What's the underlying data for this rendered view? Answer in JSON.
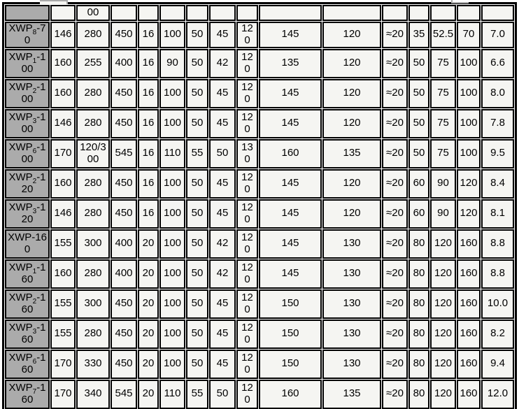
{
  "table": {
    "description": "XWP series reducer dimension specification table (top row cut off by crop)",
    "colors": {
      "header_bg": "#ababab",
      "cell_bg": "#f5f5f2",
      "grid": "#000000",
      "crop_artifact_gray": "#a9a9a9",
      "page_bg": "#ffffff"
    },
    "partial_row": {
      "cells": [
        "",
        "00",
        "",
        "",
        "",
        "",
        "",
        "",
        "",
        "",
        "",
        "",
        "",
        "",
        ""
      ]
    },
    "rows": [
      {
        "model": {
          "prefix": "XWP",
          "sub": "8",
          "suffix": "-70"
        },
        "values": [
          "146",
          "280",
          "450",
          "16",
          "100",
          "50",
          "45",
          "120",
          "145",
          "120",
          "≈20",
          "35",
          "52.5",
          "70",
          "7.0"
        ]
      },
      {
        "model": {
          "prefix": "XWP",
          "sub": "1",
          "suffix": "-100"
        },
        "values": [
          "160",
          "255",
          "400",
          "16",
          "90",
          "50",
          "42",
          "120",
          "135",
          "120",
          "≈20",
          "50",
          "75",
          "100",
          "6.6"
        ]
      },
      {
        "model": {
          "prefix": "XWP",
          "sub": "2",
          "suffix": "-100"
        },
        "values": [
          "160",
          "280",
          "450",
          "16",
          "100",
          "50",
          "45",
          "120",
          "145",
          "120",
          "≈20",
          "50",
          "75",
          "100",
          "8.0"
        ]
      },
      {
        "model": {
          "prefix": "XWP",
          "sub": "3",
          "suffix": "-100"
        },
        "values": [
          "146",
          "280",
          "450",
          "16",
          "100",
          "50",
          "45",
          "120",
          "145",
          "120",
          "≈20",
          "50",
          "75",
          "100",
          "7.8"
        ]
      },
      {
        "model": {
          "prefix": "XWP",
          "sub": "6",
          "suffix": "-100"
        },
        "values": [
          "170",
          "120/300",
          "545",
          "16",
          "110",
          "55",
          "50",
          "130",
          "160",
          "135",
          "≈20",
          "50",
          "75",
          "100",
          "9.5"
        ]
      },
      {
        "model": {
          "prefix": "XWP",
          "sub": "2",
          "suffix": "-120"
        },
        "values": [
          "160",
          "280",
          "450",
          "16",
          "100",
          "50",
          "45",
          "120",
          "145",
          "120",
          "≈20",
          "60",
          "90",
          "120",
          "8.4"
        ]
      },
      {
        "model": {
          "prefix": "XWP",
          "sub": "3",
          "suffix": "-120"
        },
        "values": [
          "146",
          "280",
          "450",
          "16",
          "100",
          "50",
          "45",
          "120",
          "145",
          "120",
          "≈20",
          "60",
          "90",
          "120",
          "8.1"
        ]
      },
      {
        "model": {
          "prefix": "XWP",
          "sub": "",
          "suffix": "-160"
        },
        "values": [
          "155",
          "300",
          "400",
          "20",
          "100",
          "50",
          "42",
          "120",
          "145",
          "130",
          "≈20",
          "80",
          "120",
          "160",
          "8.8"
        ]
      },
      {
        "model": {
          "prefix": "XWP",
          "sub": "1",
          "suffix": "-160"
        },
        "values": [
          "160",
          "280",
          "400",
          "20",
          "100",
          "50",
          "42",
          "120",
          "145",
          "130",
          "≈20",
          "80",
          "120",
          "160",
          "8.8"
        ]
      },
      {
        "model": {
          "prefix": "XWP",
          "sub": "2",
          "suffix": "-160"
        },
        "values": [
          "155",
          "300",
          "450",
          "20",
          "100",
          "50",
          "45",
          "120",
          "150",
          "130",
          "≈20",
          "80",
          "120",
          "160",
          "10.0"
        ]
      },
      {
        "model": {
          "prefix": "XWP",
          "sub": "3",
          "suffix": "-160"
        },
        "values": [
          "155",
          "280",
          "450",
          "20",
          "100",
          "50",
          "45",
          "120",
          "150",
          "130",
          "≈20",
          "80",
          "120",
          "160",
          "8.2"
        ]
      },
      {
        "model": {
          "prefix": "XWP",
          "sub": "6",
          "suffix": "-160"
        },
        "values": [
          "170",
          "330",
          "450",
          "20",
          "100",
          "50",
          "45",
          "120",
          "150",
          "130",
          "≈20",
          "80",
          "120",
          "160",
          "9.4"
        ]
      },
      {
        "model": {
          "prefix": "XWP",
          "sub": "7",
          "suffix": "-160"
        },
        "values": [
          "170",
          "340",
          "545",
          "20",
          "110",
          "55",
          "50",
          "120",
          "160",
          "135",
          "≈20",
          "80",
          "120",
          "160",
          "12.0"
        ]
      }
    ]
  }
}
